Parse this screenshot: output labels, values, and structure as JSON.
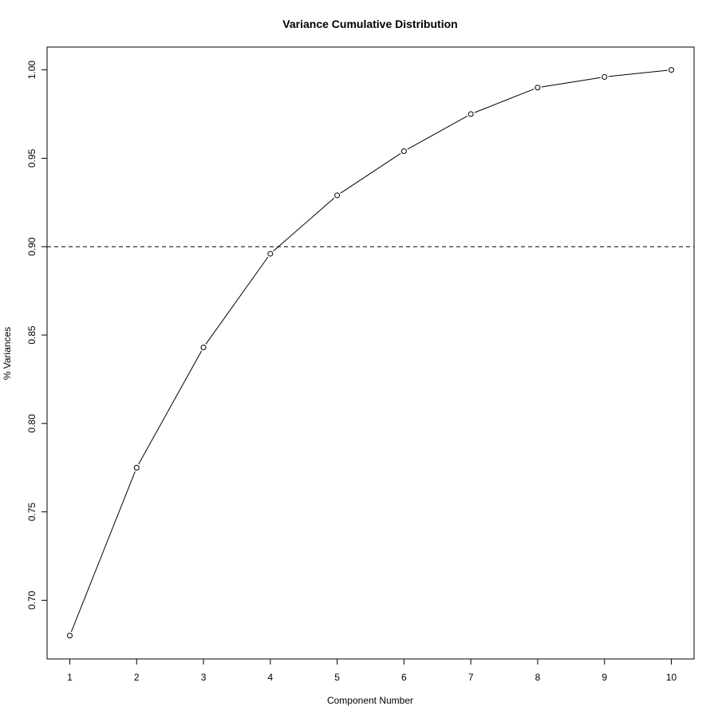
{
  "chart_data": {
    "type": "line",
    "title": "Variance Cumulative Distribution",
    "xlabel": "Component Number",
    "ylabel": "% Variances",
    "x": [
      1,
      2,
      3,
      4,
      5,
      6,
      7,
      8,
      9,
      10
    ],
    "y": [
      0.68,
      0.775,
      0.843,
      0.896,
      0.929,
      0.954,
      0.975,
      0.99,
      0.996,
      1.0
    ],
    "x_ticks": [
      "1",
      "2",
      "3",
      "4",
      "5",
      "6",
      "7",
      "8",
      "9",
      "10"
    ],
    "y_ticks": [
      "0.70",
      "0.75",
      "0.80",
      "0.85",
      "0.90",
      "0.95",
      "1.00"
    ],
    "xlim": [
      0.66,
      10.34
    ],
    "ylim": [
      0.6668,
      1.0129
    ],
    "reference_line": {
      "y": 0.9,
      "style": "dashed"
    },
    "marker": "open-circle",
    "grid": false,
    "line_color": "#000000"
  }
}
